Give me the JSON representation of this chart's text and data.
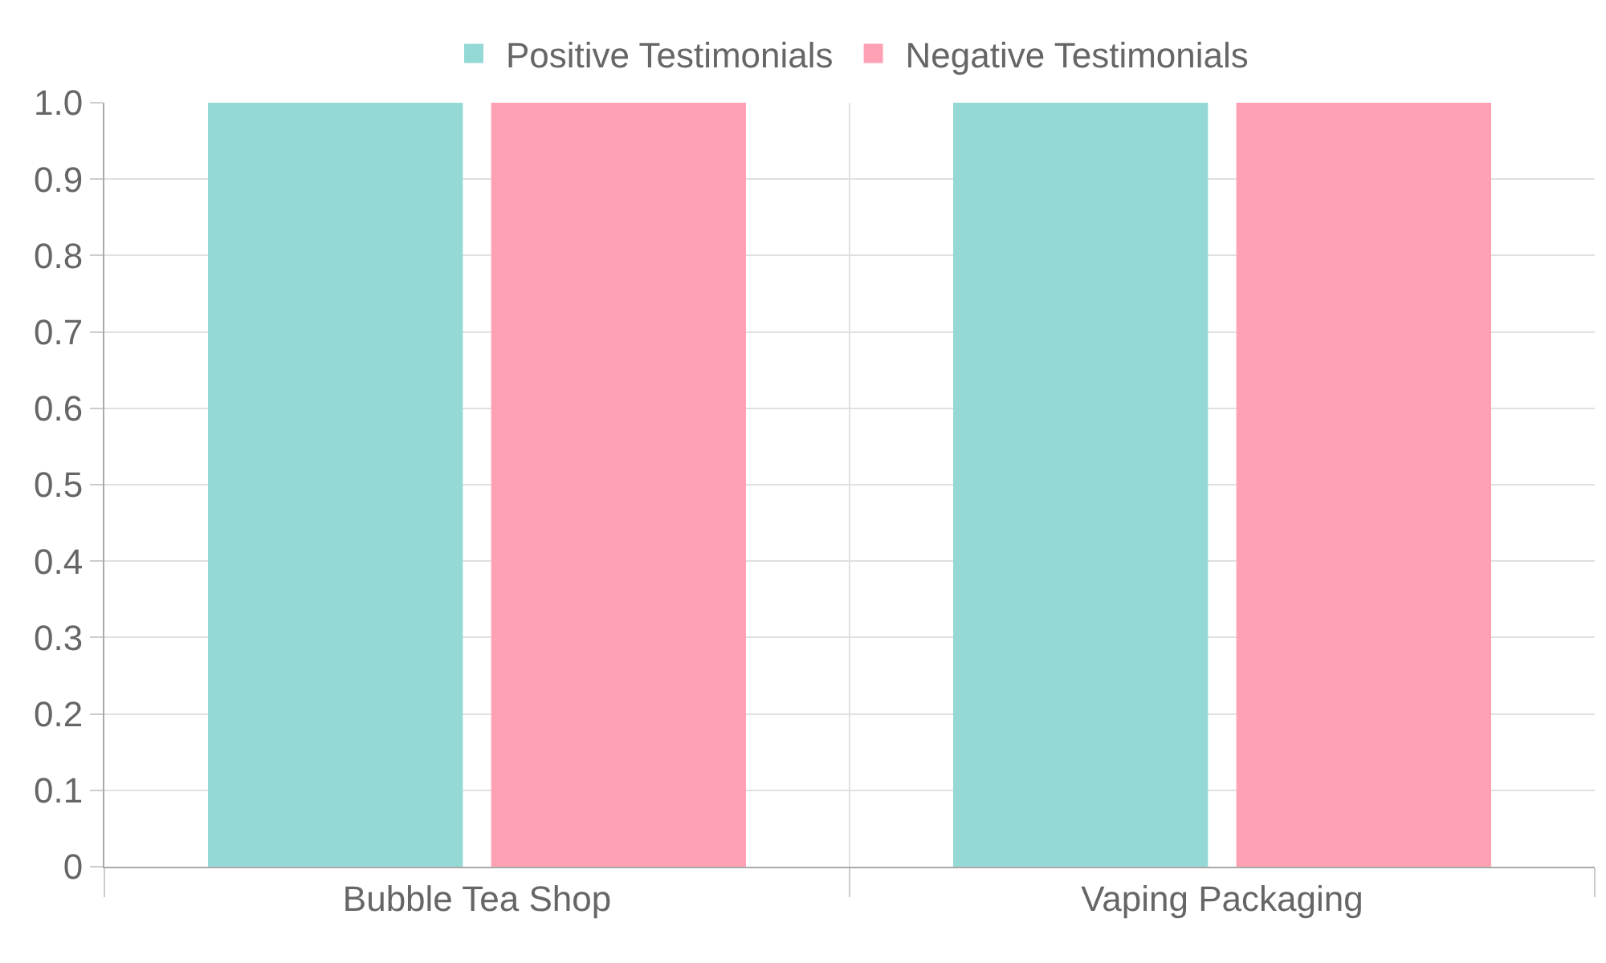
{
  "chart_data": {
    "type": "bar",
    "categories": [
      "Bubble Tea Shop",
      "Vaping Packaging"
    ],
    "series": [
      {
        "name": "Positive Testimonials",
        "color": "#94d9d6",
        "values": [
          1,
          1
        ]
      },
      {
        "name": "Negative Testimonials",
        "color": "#ffa1b4",
        "values": [
          1,
          1
        ]
      }
    ],
    "ylim": [
      0,
      1
    ],
    "yticks": [
      0,
      0.1,
      0.2,
      0.3,
      0.4,
      0.5,
      0.6,
      0.7,
      0.8,
      0.9,
      {
        "value": 1,
        "label": "1.0"
      }
    ],
    "grid": true,
    "legend": "top"
  }
}
